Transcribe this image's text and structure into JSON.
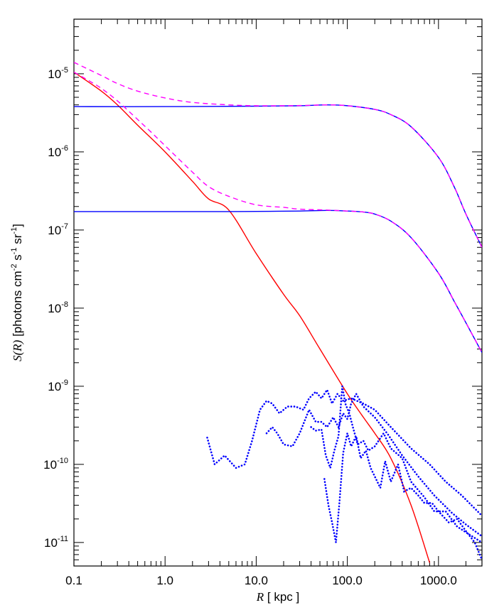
{
  "chart_data": {
    "type": "line",
    "xscale": "log",
    "yscale": "log",
    "xlim": [
      0.1,
      3000
    ],
    "ylim": [
      5e-12,
      5e-05
    ],
    "xlabel": {
      "var": "R",
      "rest": " [ kpc ]"
    },
    "ylabel": {
      "var": "S(R)",
      "bracket": " [photons cm",
      "sup1": "-2",
      "mid1": " s",
      "sup2": "-1",
      "mid2": " sr",
      "sup3": "-1",
      "end": "]"
    },
    "x_ticks": [
      {
        "value": 0.1,
        "label": "0.1"
      },
      {
        "value": 1,
        "label": "1.0"
      },
      {
        "value": 10,
        "label": "10.0"
      },
      {
        "value": 100,
        "label": "100.0"
      },
      {
        "value": 1000,
        "label": "1000.0"
      }
    ],
    "y_ticks": [
      {
        "value": 1e-05,
        "base": "10",
        "exp": "-5"
      },
      {
        "value": 1e-06,
        "base": "10",
        "exp": "-6"
      },
      {
        "value": 1e-07,
        "base": "10",
        "exp": "-7"
      },
      {
        "value": 1e-08,
        "base": "10",
        "exp": "-8"
      },
      {
        "value": 1e-09,
        "base": "10",
        "exp": "-9"
      },
      {
        "value": 1e-10,
        "base": "10",
        "exp": "-10"
      },
      {
        "value": 1e-11,
        "base": "10",
        "exp": "-11"
      }
    ],
    "series": [
      {
        "style": "solid",
        "color": "#ff0000",
        "x": [
          0.1,
          0.2,
          0.3,
          0.5,
          1,
          2,
          3,
          5,
          10,
          20,
          30,
          50,
          100,
          150,
          200,
          300,
          500,
          800
        ],
        "y": [
          1.05e-05,
          6e-06,
          4e-06,
          2.2e-06,
          1e-06,
          4.2e-07,
          2.5e-07,
          1.8e-07,
          5e-08,
          1.5e-08,
          8e-09,
          3e-09,
          8e-10,
          4e-10,
          2.5e-10,
          1.2e-10,
          3e-11,
          5.5e-12
        ]
      },
      {
        "style": "solid",
        "color": "#0000ff",
        "x": [
          0.1,
          1,
          10,
          30,
          60,
          100,
          200,
          300,
          500,
          1000,
          1500,
          2000,
          3000
        ],
        "y": [
          3.8e-06,
          3.8e-06,
          3.85e-06,
          3.9e-06,
          4e-06,
          3.9e-06,
          3.5e-06,
          3e-06,
          2.1e-06,
          8.5e-07,
          3.5e-07,
          1.6e-07,
          6e-08
        ]
      },
      {
        "style": "dashed",
        "color": "#ff00ff",
        "x": [
          0.1,
          0.2,
          0.3,
          0.5,
          1,
          2,
          5,
          10,
          30,
          60,
          100,
          200,
          300,
          500,
          1000,
          1500,
          2000,
          3000
        ],
        "y": [
          1.4e-05,
          9.5e-06,
          7.5e-06,
          6e-06,
          4.9e-06,
          4.3e-06,
          4e-06,
          3.9e-06,
          3.92e-06,
          4e-06,
          3.9e-06,
          3.5e-06,
          3e-06,
          2.1e-06,
          8.5e-07,
          3.5e-07,
          1.6e-07,
          6e-08
        ]
      },
      {
        "style": "solid",
        "color": "#0000ff",
        "x": [
          0.1,
          1,
          5,
          10,
          30,
          60,
          100,
          150,
          200,
          300,
          500,
          1000,
          1500,
          2000,
          3000
        ],
        "y": [
          1.72e-07,
          1.72e-07,
          1.72e-07,
          1.73e-07,
          1.75e-07,
          1.78e-07,
          1.75e-07,
          1.7e-07,
          1.6e-07,
          1.3e-07,
          8e-08,
          2.8e-08,
          1.2e-08,
          6.5e-09,
          2.7e-09
        ]
      },
      {
        "style": "dashed",
        "color": "#ff00ff",
        "x": [
          0.1,
          0.15,
          0.2,
          0.3,
          0.5,
          0.7,
          1,
          2,
          3,
          5,
          10,
          20,
          30,
          60,
          100,
          150,
          200,
          300,
          500,
          1000,
          1500,
          2000,
          3000
        ],
        "y": [
          1.05e-05,
          8e-06,
          6.5e-06,
          4.5e-06,
          2.6e-06,
          1.8e-06,
          1.2e-06,
          5.5e-07,
          3.6e-07,
          2.7e-07,
          2.1e-07,
          1.95e-07,
          1.85e-07,
          1.8e-07,
          1.75e-07,
          1.7e-07,
          1.6e-07,
          1.3e-07,
          8e-08,
          2.8e-08,
          1.2e-08,
          6.5e-09,
          2.7e-09
        ]
      },
      {
        "style": "dotted",
        "color": "#0000ff",
        "x": [
          2.9,
          3.5,
          4.5,
          6,
          7.5,
          9,
          11,
          13,
          15,
          18,
          22,
          27,
          33,
          38,
          45,
          52,
          60,
          68,
          78,
          90,
          110,
          150,
          200,
          300,
          500,
          800,
          1200,
          1800,
          3000
        ],
        "y": [
          2.2e-10,
          1e-10,
          1.3e-10,
          9e-11,
          1e-10,
          2e-10,
          5e-10,
          6.5e-10,
          6e-10,
          4.5e-10,
          5.5e-10,
          5.5e-10,
          5e-10,
          7e-10,
          8.5e-10,
          7e-10,
          9e-10,
          6e-10,
          8e-10,
          6.5e-10,
          7e-10,
          6e-10,
          5e-10,
          3e-10,
          1.6e-10,
          1e-10,
          6e-11,
          4e-11,
          2.2e-11
        ]
      },
      {
        "style": "dotted",
        "color": "#0000ff",
        "x": [
          13,
          15,
          17,
          20,
          25,
          30,
          38,
          45,
          52,
          60,
          70,
          80,
          90,
          100,
          110,
          125,
          150,
          200,
          280,
          400,
          600,
          900,
          1400,
          2000,
          3000
        ],
        "y": [
          2.5e-10,
          3e-10,
          2.5e-10,
          1.8e-10,
          1.7e-10,
          2.5e-10,
          5e-10,
          3.5e-10,
          3.5e-10,
          3e-10,
          4e-10,
          3e-10,
          4.5e-10,
          3.8e-10,
          6e-10,
          8e-10,
          5.5e-10,
          4e-10,
          2.4e-10,
          1.3e-10,
          7e-11,
          4e-11,
          2.4e-11,
          1.7e-11,
          1.2e-11
        ]
      },
      {
        "style": "dotted",
        "color": "#0000ff",
        "x": [
          40,
          45,
          52,
          58,
          65,
          72,
          80,
          88,
          95,
          105,
          115,
          130,
          150,
          170,
          200,
          250,
          300,
          400,
          500,
          700,
          900,
          1200,
          1600,
          2100,
          3000
        ],
        "y": [
          3e-10,
          2.7e-10,
          2.8e-10,
          1.3e-10,
          9e-11,
          1.5e-10,
          2.3e-10,
          1e-09,
          6e-10,
          4.5e-10,
          3e-10,
          1.8e-10,
          2e-10,
          1.5e-10,
          1.7e-10,
          2.5e-10,
          1.6e-10,
          1.2e-10,
          6e-11,
          3.8e-11,
          2.5e-11,
          2.5e-11,
          1.6e-11,
          1.3e-11,
          1e-11
        ]
      },
      {
        "style": "dotted",
        "color": "#0000ff",
        "x": [
          56,
          62,
          68,
          75,
          82,
          90,
          100,
          110,
          125,
          140,
          160,
          180,
          200,
          230,
          260,
          300,
          360,
          420,
          500,
          600,
          700,
          850,
          1000,
          1300,
          1600,
          2000,
          2500,
          3000
        ],
        "y": [
          6.5e-11,
          3e-11,
          1.8e-11,
          1e-11,
          3.3e-11,
          1.4e-10,
          2.5e-10,
          1.7e-10,
          2.3e-10,
          1.2e-10,
          1.5e-10,
          9e-11,
          7e-11,
          5e-11,
          1.1e-10,
          6e-11,
          1e-10,
          4.5e-11,
          5e-11,
          4e-11,
          3.2e-11,
          3.2e-11,
          2.5e-11,
          1.8e-11,
          2e-11,
          1.4e-11,
          1e-11,
          6e-12
        ]
      }
    ]
  }
}
